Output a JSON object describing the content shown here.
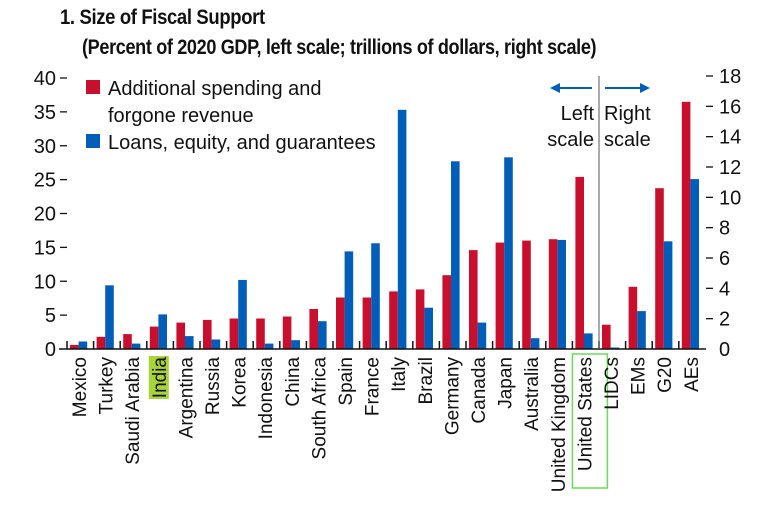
{
  "header": {
    "title": "1. Size of Fiscal Support",
    "subtitle": "(Percent of 2020 GDP, left scale; trillions of dollars, right scale)"
  },
  "colors": {
    "spending": "#c8102e",
    "loans": "#005eb8",
    "india_highlight": "#a8d43a",
    "us_highlight_border": "#66dd55"
  },
  "annotations": {
    "left_scale_line1": "Left",
    "left_scale_line2": "scale",
    "right_scale_line1": "Right",
    "right_scale_line2": "scale",
    "highlighted_categories": [
      "India",
      "United States"
    ]
  },
  "chart_data": {
    "type": "bar",
    "title": "1. Size of Fiscal Support",
    "subtitle": "(Percent of 2020 GDP, left scale; trillions of dollars, right scale)",
    "xlabel": "",
    "ylabel_left": "Percent of 2020 GDP",
    "ylabel_right": "Trillions of dollars",
    "ylim_left": [
      0,
      40
    ],
    "yticks_left": [
      0,
      5,
      10,
      15,
      20,
      25,
      30,
      35,
      40
    ],
    "ylim_right": [
      0,
      18
    ],
    "yticks_right": [
      0,
      2,
      4,
      6,
      8,
      10,
      12,
      14,
      16,
      18
    ],
    "grid": false,
    "legend_position": "top-left",
    "categories": [
      "Mexico",
      "Turkey",
      "Saudi Arabia",
      "India",
      "Argentina",
      "Russia",
      "Korea",
      "Indonesia",
      "China",
      "South Africa",
      "Spain",
      "France",
      "Italy",
      "Brazil",
      "Germany",
      "Canada",
      "Japan",
      "Australia",
      "United Kingdom",
      "United States",
      "LIDCs",
      "EMs",
      "G20",
      "AEs"
    ],
    "axis_assignment": [
      "left",
      "left",
      "left",
      "left",
      "left",
      "left",
      "left",
      "left",
      "left",
      "left",
      "left",
      "left",
      "left",
      "left",
      "left",
      "left",
      "left",
      "left",
      "left",
      "left",
      "right",
      "right",
      "right",
      "right"
    ],
    "series": [
      {
        "name": "Additional spending and forgone revenue",
        "legend_line1": "Additional spending and",
        "legend_line2": "forgone revenue",
        "values": [
          0.6,
          1.8,
          2.2,
          3.3,
          3.9,
          4.3,
          4.5,
          4.5,
          4.8,
          5.9,
          7.6,
          7.6,
          8.5,
          8.8,
          10.9,
          14.6,
          15.7,
          16.0,
          16.2,
          25.4,
          1.6,
          4.1,
          10.6,
          16.3
        ]
      },
      {
        "name": "Loans, equity, and guarantees",
        "legend_line1": "Loans, equity, and guarantees",
        "values": [
          1.1,
          9.4,
          0.8,
          5.1,
          1.9,
          1.4,
          10.2,
          0.8,
          1.3,
          4.1,
          14.4,
          15.6,
          35.3,
          6.1,
          27.7,
          3.9,
          28.3,
          1.6,
          16.1,
          2.3,
          0.1,
          2.5,
          7.1,
          11.2
        ]
      }
    ]
  }
}
